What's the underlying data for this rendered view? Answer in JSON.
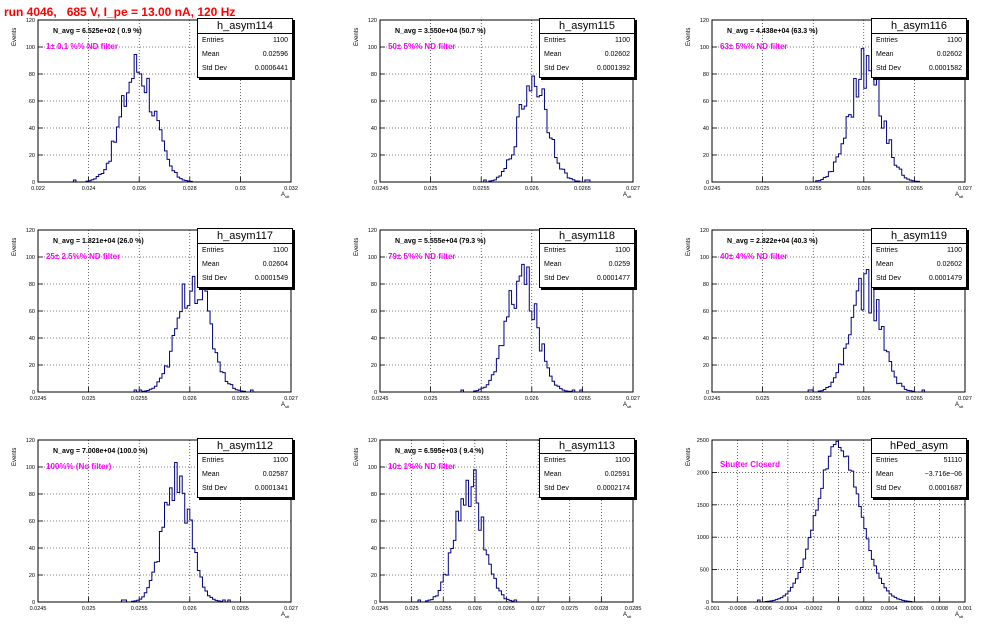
{
  "title": "run 4046,   685 V, I_pe = 13.00 nA, 120 Hz",
  "y_axis_label": "Events",
  "x_axis_label": "A",
  "x_axis_label_sub": "stt",
  "colors": {
    "histogram": "#000080",
    "annotation": "#ff00ff",
    "title": "#ff0000"
  },
  "chart_data": [
    {
      "type": "histogram",
      "hist_name": "h_asym114",
      "n_avg_text": "N_avg = 6.525e+02 ( 0.9 %)",
      "annotation": "1± 0.1 %% ND filter",
      "stats": {
        "entries_label": "Entries",
        "entries": "1100",
        "mean_label": "Mean",
        "mean": "0.02596",
        "std_label": "Std Dev",
        "std": "0.0006441"
      },
      "xlim": [
        0.022,
        0.032
      ],
      "ylim": [
        0,
        120
      ],
      "xticks": [
        "0.022",
        "0.024",
        "0.026",
        "0.028",
        "0.03",
        "0.032"
      ],
      "yticks": [
        "0",
        "20",
        "40",
        "60",
        "80",
        "100",
        "120"
      ],
      "mean_value": 0.02596,
      "std_value": 0.0006441,
      "peak": 85,
      "entries": 1100
    },
    {
      "type": "histogram",
      "hist_name": "h_asym115",
      "n_avg_text": "N_avg = 3.550e+04 (50.7 %)",
      "annotation": "50± 5%% ND filter",
      "stats": {
        "entries_label": "Entries",
        "entries": "1100",
        "mean_label": "Mean",
        "mean": "0.02602",
        "std_label": "Std Dev",
        "std": "0.0001392"
      },
      "xlim": [
        0.0245,
        0.027
      ],
      "ylim": [
        0,
        120
      ],
      "xticks": [
        "0.0245",
        "0.025",
        "0.0255",
        "0.026",
        "0.0265",
        "0.027"
      ],
      "yticks": [
        "0",
        "20",
        "40",
        "60",
        "80",
        "100",
        "120"
      ],
      "mean_value": 0.02602,
      "std_value": 0.0001392,
      "peak": 78,
      "entries": 1100
    },
    {
      "type": "histogram",
      "hist_name": "h_asym116",
      "n_avg_text": "N_avg = 4.438e+04 (63.3 %)",
      "annotation": "63± 5%% ND filter",
      "stats": {
        "entries_label": "Entries",
        "entries": "1100",
        "mean_label": "Mean",
        "mean": "0.02602",
        "std_label": "Std Dev",
        "std": "0.0001582"
      },
      "xlim": [
        0.0245,
        0.027
      ],
      "ylim": [
        0,
        120
      ],
      "xticks": [
        "0.0245",
        "0.025",
        "0.0255",
        "0.026",
        "0.0265",
        "0.027"
      ],
      "yticks": [
        "0",
        "20",
        "40",
        "60",
        "80",
        "100",
        "120"
      ],
      "mean_value": 0.02602,
      "std_value": 0.0001582,
      "peak": 85,
      "entries": 1100
    },
    {
      "type": "histogram",
      "hist_name": "h_asym117",
      "n_avg_text": "N_avg = 1.821e+04 (26.0 %)",
      "annotation": "25± 2.5%% ND filter",
      "stats": {
        "entries_label": "Entries",
        "entries": "1100",
        "mean_label": "Mean",
        "mean": "0.02604",
        "std_label": "Std Dev",
        "std": "0.0001549"
      },
      "xlim": [
        0.0245,
        0.027
      ],
      "ylim": [
        0,
        120
      ],
      "xticks": [
        "0.0245",
        "0.025",
        "0.0255",
        "0.026",
        "0.0265",
        "0.027"
      ],
      "yticks": [
        "0",
        "20",
        "40",
        "60",
        "80",
        "100",
        "120"
      ],
      "mean_value": 0.02604,
      "std_value": 0.0001549,
      "peak": 84,
      "entries": 1100
    },
    {
      "type": "histogram",
      "hist_name": "h_asym118",
      "n_avg_text": "N_avg = 5.555e+04 (79.3 %)",
      "annotation": "79± 5%% ND filter",
      "stats": {
        "entries_label": "Entries",
        "entries": "1100",
        "mean_label": "Mean",
        "mean": "0.0259",
        "std_label": "Std Dev",
        "std": "0.0001477"
      },
      "xlim": [
        0.0245,
        0.027
      ],
      "ylim": [
        0,
        120
      ],
      "xticks": [
        "0.0245",
        "0.025",
        "0.0255",
        "0.026",
        "0.0265",
        "0.027"
      ],
      "yticks": [
        "0",
        "20",
        "40",
        "60",
        "80",
        "100",
        "120"
      ],
      "mean_value": 0.0259,
      "std_value": 0.0001477,
      "peak": 84,
      "entries": 1100
    },
    {
      "type": "histogram",
      "hist_name": "h_asym119",
      "n_avg_text": "N_avg = 2.822e+04 (40.3 %)",
      "annotation": "40± 4%% ND filter",
      "stats": {
        "entries_label": "Entries",
        "entries": "1100",
        "mean_label": "Mean",
        "mean": "0.02602",
        "std_label": "Std Dev",
        "std": "0.0001479"
      },
      "xlim": [
        0.0245,
        0.027
      ],
      "ylim": [
        0,
        120
      ],
      "xticks": [
        "0.0245",
        "0.025",
        "0.0255",
        "0.026",
        "0.0265",
        "0.027"
      ],
      "yticks": [
        "0",
        "20",
        "40",
        "60",
        "80",
        "100",
        "120"
      ],
      "mean_value": 0.02602,
      "std_value": 0.0001479,
      "peak": 78,
      "entries": 1100
    },
    {
      "type": "histogram",
      "hist_name": "h_asym112",
      "n_avg_text": "N_avg = 7.008e+04 (100.0 %)",
      "annotation": "100%% (No filter)",
      "stats": {
        "entries_label": "Entries",
        "entries": "1100",
        "mean_label": "Mean",
        "mean": "0.02587",
        "std_label": "Std Dev",
        "std": "0.0001341"
      },
      "xlim": [
        0.0245,
        0.027
      ],
      "ylim": [
        0,
        120
      ],
      "xticks": [
        "0.0245",
        "0.025",
        "0.0255",
        "0.026",
        "0.0265",
        "0.027"
      ],
      "yticks": [
        "0",
        "20",
        "40",
        "60",
        "80",
        "100",
        "120"
      ],
      "mean_value": 0.02587,
      "std_value": 0.0001341,
      "peak": 90,
      "entries": 1100
    },
    {
      "type": "histogram",
      "hist_name": "h_asym113",
      "n_avg_text": "N_avg = 6.595e+03 ( 9.4 %)",
      "annotation": "10± 1%% ND filter",
      "stats": {
        "entries_label": "Entries",
        "entries": "1100",
        "mean_label": "Mean",
        "mean": "0.02591",
        "std_label": "Std Dev",
        "std": "0.0002174"
      },
      "xlim": [
        0.0245,
        0.0285
      ],
      "ylim": [
        0,
        120
      ],
      "xticks": [
        "0.0245",
        "0.025",
        "0.0255",
        "0.026",
        "0.0265",
        "0.027",
        "0.0275",
        "0.028",
        "0.0285"
      ],
      "yticks": [
        "0",
        "20",
        "40",
        "60",
        "80",
        "100",
        "120"
      ],
      "mean_value": 0.02591,
      "std_value": 0.0002174,
      "peak": 90,
      "entries": 1100
    },
    {
      "type": "histogram",
      "hist_name": "hPed_asym",
      "n_avg_text": "",
      "annotation": "Shutter Closerd",
      "stats": {
        "entries_label": "Entries",
        "entries": "51110",
        "mean_label": "Mean",
        "mean": "−3.716e−06",
        "std_label": "Std Dev",
        "std": "0.0001687"
      },
      "xlim": [
        -0.001,
        0.001
      ],
      "ylim": [
        0,
        2500
      ],
      "xticks": [
        "-0.001",
        "-0.0008",
        "-0.0006",
        "-0.0004",
        "-0.0002",
        "0",
        "0.0002",
        "0.0004",
        "0.0006",
        "0.0008",
        "0.001"
      ],
      "yticks": [
        "0",
        "500",
        "1000",
        "1500",
        "2000",
        "2500"
      ],
      "mean_value": 0.0,
      "std_value": 0.0001687,
      "peak": 2430,
      "entries": 51110
    }
  ]
}
